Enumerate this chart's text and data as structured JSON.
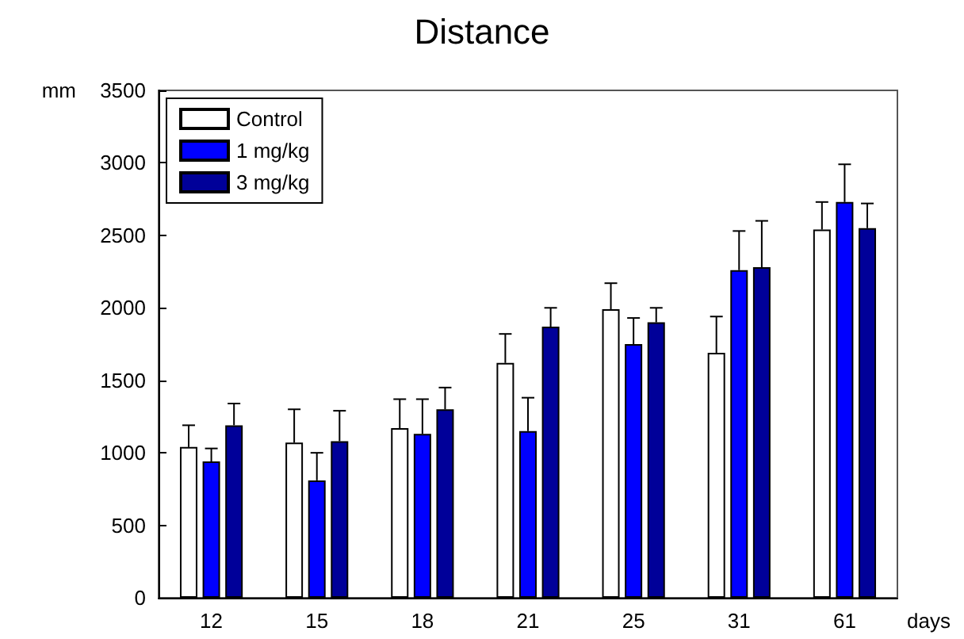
{
  "chart_data": {
    "type": "bar",
    "title": "Distance",
    "xlabel": "days",
    "ylabel": "mm",
    "categories": [
      "12",
      "15",
      "18",
      "21",
      "25",
      "31",
      "61"
    ],
    "series": [
      {
        "name": "Control",
        "color": "#ffffff",
        "values": [
          1040,
          1070,
          1170,
          1620,
          1990,
          1690,
          2540
        ],
        "errors": [
          [
            1040,
            1190
          ],
          [
            1070,
            1300
          ],
          [
            1170,
            1370
          ],
          [
            1620,
            1820
          ],
          [
            1990,
            2170
          ],
          [
            1690,
            1940
          ],
          [
            2540,
            2730
          ]
        ]
      },
      {
        "name": "1 mg/kg",
        "color": "#0000ff",
        "values": [
          940,
          810,
          1130,
          1150,
          1750,
          2260,
          2730
        ],
        "errors": [
          [
            940,
            1030
          ],
          [
            810,
            1000
          ],
          [
            1130,
            1370
          ],
          [
            1150,
            1380
          ],
          [
            1750,
            1930
          ],
          [
            2260,
            2530
          ],
          [
            2730,
            2990
          ]
        ]
      },
      {
        "name": "3 mg/kg",
        "color": "#000099",
        "values": [
          1190,
          1080,
          1300,
          1870,
          1900,
          2280,
          2550
        ],
        "errors": [
          [
            1190,
            1340
          ],
          [
            1080,
            1290
          ],
          [
            1300,
            1450
          ],
          [
            1870,
            2000
          ],
          [
            1900,
            2000
          ],
          [
            2280,
            2600
          ],
          [
            2550,
            2720
          ]
        ]
      }
    ],
    "ylim": [
      0,
      3500
    ],
    "yticks": [
      0,
      500,
      1000,
      1500,
      2000,
      2500,
      3000,
      3500
    ],
    "grid": false,
    "legend": "top left"
  }
}
